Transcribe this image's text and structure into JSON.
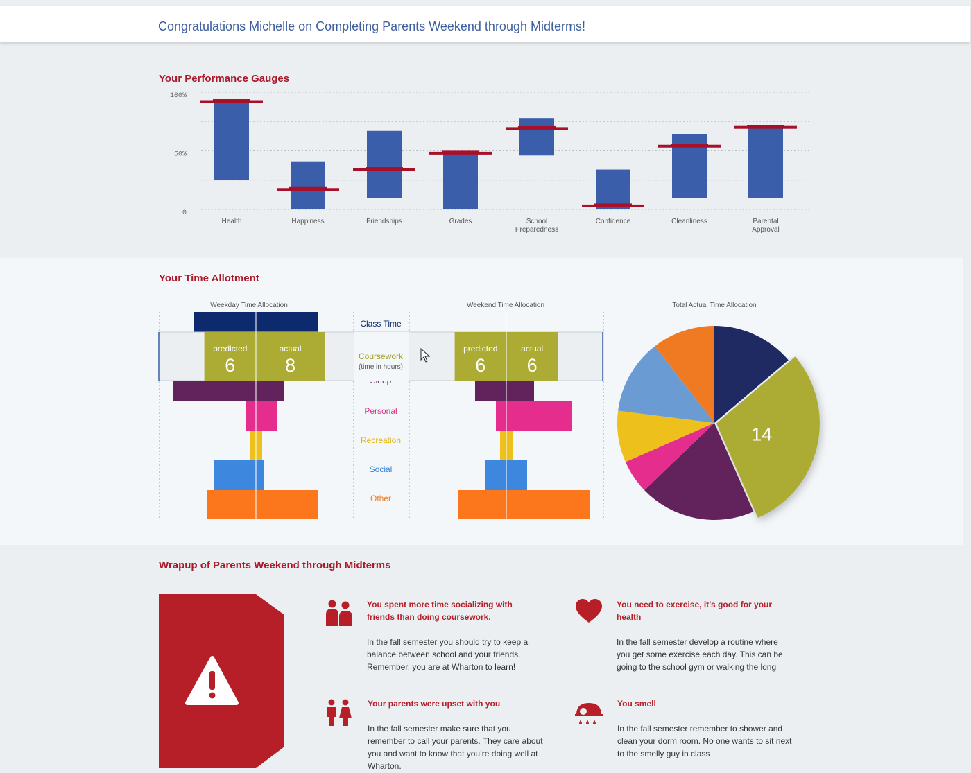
{
  "banner": {
    "title": "Congratulations Michelle on Completing Parents Weekend through Midterms!"
  },
  "gauges": {
    "title": "Your Performance Gauges",
    "chart_data": {
      "type": "bar",
      "categories": [
        "Health",
        "Happiness",
        "Friendships",
        "Grades",
        "School Preparedness",
        "Confidence",
        "Cleanliness",
        "Parental Approval"
      ],
      "series": [
        {
          "values_low": [
            25,
            0,
            10,
            0,
            46,
            0,
            10,
            10
          ]
        },
        {
          "values_high": [
            92,
            41,
            67,
            50,
            78,
            34,
            64,
            71
          ]
        },
        {
          "marker": [
            92,
            17,
            34,
            48,
            69,
            3,
            54,
            70
          ]
        }
      ],
      "yticks": [
        "100%",
        "50%",
        "0"
      ],
      "ylim": [
        0,
        100
      ],
      "grid": true,
      "colors": {
        "bar": "#3a5ea9",
        "marker": "#a8102a"
      }
    }
  },
  "time": {
    "title": "Your Time Allotment",
    "weekday_title": "Weekday Time Allocation",
    "weekend_title": "Weekend Time Allocation",
    "total_title": "Total Actual Time Allocation",
    "categories": [
      {
        "name": "Class Time",
        "color": "#0d2a6e",
        "label_color": "#0d2a6e",
        "weekday_pred": 9,
        "weekday_act": 9,
        "weekend_pred": 0,
        "weekend_act": 0
      },
      {
        "name": "Coursework",
        "color": "#acac34",
        "label_color": "#9f9f26",
        "weekday_pred": 6,
        "weekday_act": 8,
        "weekend_pred": 6,
        "weekend_act": 6
      },
      {
        "name": "Sleep",
        "color": "#62235c",
        "label_color": "#62235c",
        "weekday_pred": 12,
        "weekday_act": 4,
        "weekend_pred": 4.5,
        "weekend_act": 4
      },
      {
        "name": "Personal",
        "color": "#e52d8e",
        "label_color": "#d92f88",
        "weekday_pred": 1.5,
        "weekday_act": 3,
        "weekend_pred": 1.5,
        "weekend_act": 9.5
      },
      {
        "name": "Recreation",
        "color": "#edc01b",
        "label_color": "#e0b310",
        "weekday_pred": 0.9,
        "weekday_act": 0.9,
        "weekend_pred": 0.9,
        "weekend_act": 0.9
      },
      {
        "name": "Social",
        "color": "#3d87df",
        "label_color": "#3583d6",
        "weekday_pred": 6,
        "weekday_act": 1.2,
        "weekend_pred": 3,
        "weekend_act": 3
      },
      {
        "name": "Other",
        "color": "#fc761c",
        "label_color": "#f07a1a",
        "weekday_pred": 7,
        "weekday_act": 9,
        "weekend_pred": 7,
        "weekend_act": 12
      }
    ],
    "tooltip": {
      "category": "Coursework",
      "sub": "(time in hours)",
      "predicted_label": "predicted",
      "actual_label": "actual",
      "weekday_predicted": "6",
      "weekday_actual": "8",
      "weekend_predicted": "6",
      "weekend_actual": "6"
    },
    "pie": {
      "highlight_label": "14",
      "slices": [
        {
          "name": "Class Time",
          "value": 13.8,
          "color": "#1f2a63"
        },
        {
          "name": "Coursework",
          "value": 29.6,
          "color": "#acac34"
        },
        {
          "name": "Sleep",
          "value": 19.4,
          "color": "#62235c"
        },
        {
          "name": "Personal",
          "value": 5.6,
          "color": "#e52d8e"
        },
        {
          "name": "Recreation",
          "value": 8.6,
          "color": "#edc01b"
        },
        {
          "name": "Social",
          "value": 12.5,
          "color": "#6a9bd3"
        },
        {
          "name": "Other",
          "value": 10.5,
          "color": "#f07a22"
        }
      ]
    }
  },
  "wrapup": {
    "title": "Wrapup of Parents Weekend through Midterms",
    "cards": [
      {
        "icon": "people-icon",
        "head": "You spent more time socializing with friends than doing coursework.",
        "body": "In the fall semester you should try to keep a balance between school and your friends. Remember, you are at Wharton to learn!"
      },
      {
        "icon": "heart-icon",
        "head": "You need to exercise, it’s good for your health",
        "body": "In the fall semester develop a routine where you get some exercise each day. This can be going to the school gym or walking the long"
      },
      {
        "icon": "family-icon",
        "head": "Your parents were upset with you",
        "body": "In the fall semester make sure that you remember to call your parents. They care about you and want to know that you’re doing well at Wharton."
      },
      {
        "icon": "shower-icon",
        "head": "You smell",
        "body": "In the fall semester remember to shower and clean your dorm room. No one wants to sit next to the smelly guy in class"
      }
    ]
  }
}
